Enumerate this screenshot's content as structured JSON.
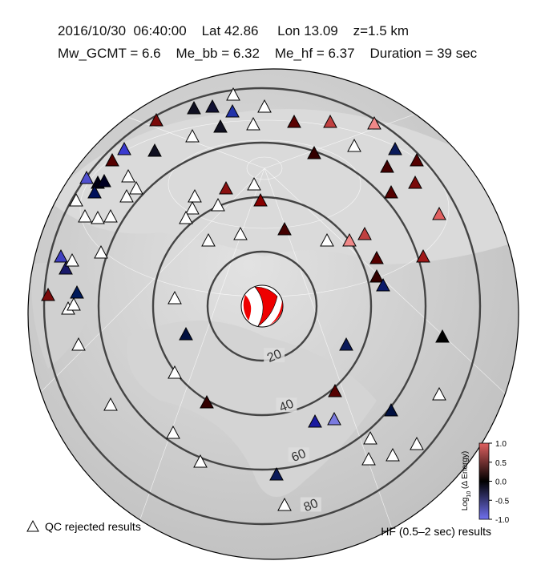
{
  "header": {
    "line1": "2016/10/30  06:40:00    Lat 42.86     Lon 13.09    z=1.5 km",
    "line2": "Mw_GCMT = 6.6    Me_bb = 6.32    Me_hf = 6.37    Duration = 39 sec"
  },
  "distance_rings": [
    20,
    40,
    60,
    80
  ],
  "colorbar": {
    "label_base": "Log",
    "label_sub": "10",
    "label_rest": " (Δ Energy)",
    "ticks": [
      {
        "value": 1,
        "label": "1.0"
      },
      {
        "value": 0.5,
        "label": "0.5"
      },
      {
        "value": 0,
        "label": "0.0"
      },
      {
        "value": -0.5,
        "label": "-0.5"
      },
      {
        "value": -1,
        "label": "-1.0"
      }
    ],
    "lim": [
      -1,
      1
    ]
  },
  "legend": {
    "qc_rejected": "QC rejected results",
    "hf_results": "HF (0.5–2 sec) results"
  }
}
